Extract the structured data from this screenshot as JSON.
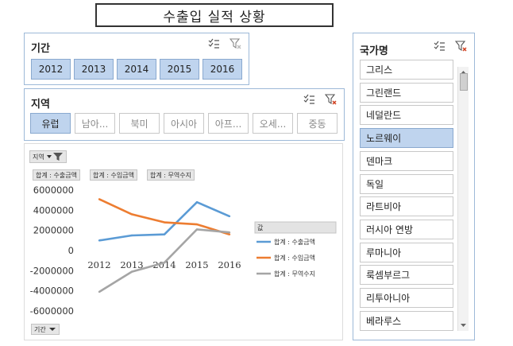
{
  "title": "수출입 실적 상황",
  "period_slicer": {
    "label": "기간",
    "items": [
      {
        "label": "2012",
        "selected": true
      },
      {
        "label": "2013",
        "selected": true
      },
      {
        "label": "2014",
        "selected": true
      },
      {
        "label": "2015",
        "selected": true
      },
      {
        "label": "2016",
        "selected": true
      }
    ]
  },
  "region_slicer": {
    "label": "지역",
    "items": [
      {
        "label": "유럽",
        "selected": true
      },
      {
        "label": "남아...",
        "selected": false
      },
      {
        "label": "북미",
        "selected": false
      },
      {
        "label": "아시아",
        "selected": false
      },
      {
        "label": "아프...",
        "selected": false
      },
      {
        "label": "오세...",
        "selected": false
      },
      {
        "label": "중동",
        "selected": false
      }
    ]
  },
  "country_slicer": {
    "label": "국가명",
    "items": [
      {
        "label": "그리스",
        "selected": false
      },
      {
        "label": "그린랜드",
        "selected": false
      },
      {
        "label": "네덜란드",
        "selected": false
      },
      {
        "label": "노르웨이",
        "selected": true
      },
      {
        "label": "덴마크",
        "selected": false
      },
      {
        "label": "독일",
        "selected": false
      },
      {
        "label": "라트비아",
        "selected": false
      },
      {
        "label": "러시아 연방",
        "selected": false
      },
      {
        "label": "루마니아",
        "selected": false
      },
      {
        "label": "룩셈부르그",
        "selected": false
      },
      {
        "label": "리투아니아",
        "selected": false
      },
      {
        "label": "베라루스",
        "selected": false
      }
    ]
  },
  "pivot_chart": {
    "filter_button": "지역",
    "value_buttons": [
      "합계 : 수출금액",
      "합계 : 수입금액",
      "합계 : 무역수지"
    ],
    "legend_title": "값",
    "axis_button": "기간"
  },
  "colors": {
    "selected_fill": "#bfd4ee",
    "slicer_border": "#9db9d8"
  },
  "chart_data": {
    "type": "line",
    "categories": [
      "2012",
      "2013",
      "2014",
      "2015",
      "2016"
    ],
    "series": [
      {
        "name": "합계 : 수출금액",
        "color": "#5b9bd5",
        "values": [
          1000000,
          1500000,
          1600000,
          4800000,
          3400000
        ]
      },
      {
        "name": "합계 : 수입금액",
        "color": "#ed7d31",
        "values": [
          5100000,
          3600000,
          2800000,
          2600000,
          1600000
        ]
      },
      {
        "name": "합계 : 무역수지",
        "color": "#a5a5a5",
        "values": [
          -4100000,
          -2100000,
          -1200000,
          2100000,
          1800000
        ]
      }
    ],
    "y_ticks": [
      "6000000",
      "4000000",
      "2000000",
      "0",
      "-2000000",
      "-4000000",
      "-6000000"
    ],
    "ylim": [
      -6000000,
      6000000
    ],
    "legend_position": "right",
    "grid": false
  }
}
